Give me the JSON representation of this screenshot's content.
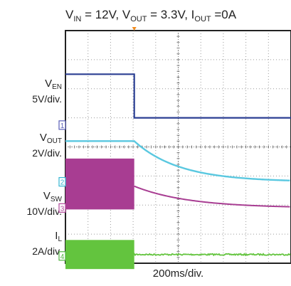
{
  "chart_data": {
    "type": "line",
    "title": {
      "parts": [
        [
          "V",
          "IN",
          " = 12V, "
        ],
        [
          "V",
          "OUT",
          " = 3.3V, "
        ],
        [
          "I",
          "OUT",
          " =0A"
        ]
      ]
    },
    "xlabel": "200ms/div.",
    "grid": true,
    "grid_divisions": {
      "x": 10,
      "y": 8
    },
    "channels": [
      {
        "id": "1",
        "name": "V",
        "sub": "EN",
        "scale": "5V/div.",
        "color": "#2b3f93",
        "marker_color": "#5a5fb8",
        "ground_div": 4.75
      },
      {
        "id": "2",
        "name": "V",
        "sub": "OUT",
        "scale": "2V/div.",
        "color": "#5ac8e0",
        "marker_color": "#35b6d2",
        "ground_div": 2.8
      },
      {
        "id": "3",
        "name": "V",
        "sub": "SW",
        "scale": "10V/div.",
        "color": "#a83d92",
        "marker_color": "#b0489a",
        "ground_div": 1.9
      },
      {
        "id": "4",
        "name": "I",
        "sub": "L",
        "scale": "2A/div.",
        "color": "#63c43e",
        "marker_color": "#4fb240",
        "ground_div": 0.25
      }
    ],
    "series": [
      {
        "channel": "1",
        "shape": "step_down",
        "level_high_div": 1.75,
        "level_low_div": 0.25,
        "step_time_div": 3.05
      },
      {
        "channel": "2",
        "shape": "exp_decay",
        "level_start_div": 1.4,
        "step_time_div": 3.05,
        "tau_div": 2.0
      },
      {
        "channel": "3",
        "shape": "switching_decay",
        "band_low_div": -0.05,
        "band_high_div": 1.7,
        "decay_start_div": 0.75,
        "step_time_div": 3.05,
        "tau_div": 2.4
      },
      {
        "channel": "4",
        "shape": "switching_to_flat",
        "band_low_div": -0.45,
        "band_high_div": 0.55,
        "level_after_div": 0.05,
        "step_time_div": 3.05
      }
    ],
    "trigger_time_div": 3.05,
    "xlim_div": [
      0,
      10
    ],
    "ylim_div": [
      0,
      8
    ]
  }
}
